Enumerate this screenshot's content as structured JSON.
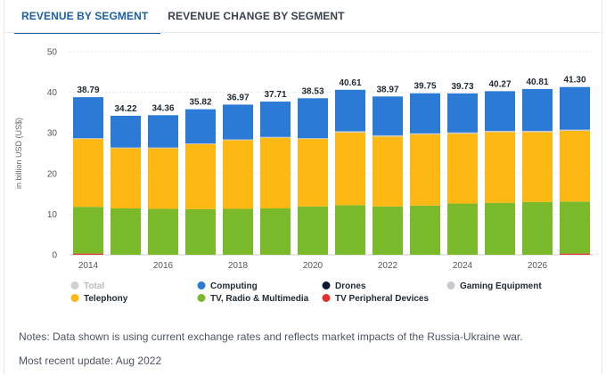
{
  "tabs": [
    {
      "label": "REVENUE BY SEGMENT",
      "active": true
    },
    {
      "label": "REVENUE CHANGE BY SEGMENT",
      "active": false
    }
  ],
  "chart_data": {
    "type": "bar",
    "stacked": true,
    "ylabel": "in billion USD (US$)",
    "ylim": [
      0,
      50
    ],
    "yticks": [
      0,
      10,
      20,
      30,
      40,
      50
    ],
    "x": [
      "2014",
      "2015",
      "2016",
      "2017",
      "2018",
      "2019",
      "2020",
      "2021",
      "2022",
      "2023",
      "2024",
      "2025",
      "2026",
      "2027"
    ],
    "xtick_labels": [
      "2014",
      "2016",
      "2018",
      "2020",
      "2022",
      "2024",
      "2026"
    ],
    "totals": [
      38.79,
      34.22,
      34.36,
      35.82,
      36.97,
      37.71,
      38.53,
      40.61,
      38.97,
      39.75,
      39.73,
      40.27,
      40.81,
      41.3
    ],
    "series": [
      {
        "name": "TV Peripheral Devices",
        "color": "#e0312b",
        "values": [
          0.3,
          0,
          0,
          0,
          0,
          0,
          0,
          0,
          0,
          0,
          0,
          0,
          0,
          0.3
        ]
      },
      {
        "name": "TV, Radio & Multimedia",
        "color": "#7ab929",
        "values": [
          11.5,
          11.4,
          11.3,
          11.2,
          11.3,
          11.4,
          11.9,
          12.2,
          11.9,
          12.1,
          12.6,
          12.8,
          13.0,
          12.8
        ]
      },
      {
        "name": "Telephony",
        "color": "#fdb813",
        "values": [
          16.7,
          14.8,
          14.9,
          16.0,
          16.9,
          17.4,
          16.6,
          17.9,
          17.2,
          17.5,
          17.2,
          17.4,
          17.2,
          17.4
        ]
      },
      {
        "name": "Gaming Equipment",
        "color": "#c9c9c9",
        "values": [
          0.2,
          0.2,
          0.2,
          0.2,
          0.2,
          0.2,
          0.2,
          0.3,
          0.3,
          0.3,
          0.3,
          0.3,
          0.3,
          0.3
        ]
      },
      {
        "name": "Drones",
        "color": "#0b1a33",
        "values": [
          0,
          0,
          0,
          0,
          0,
          0,
          0,
          0,
          0,
          0,
          0,
          0,
          0,
          0
        ]
      },
      {
        "name": "Computing",
        "color": "#2b7bd6",
        "values": [
          10.09,
          7.82,
          7.96,
          8.42,
          8.57,
          8.71,
          9.83,
          10.21,
          9.57,
          9.85,
          9.63,
          9.77,
          10.31,
          10.5
        ]
      }
    ],
    "legend": [
      {
        "name": "Total",
        "color": "#d0d0d0",
        "muted": true
      },
      {
        "name": "Computing",
        "color": "#2b7bd6"
      },
      {
        "name": "Drones",
        "color": "#0b1a33"
      },
      {
        "name": "Gaming Equipment",
        "color": "#c9c9c9"
      },
      {
        "name": "Telephony",
        "color": "#fdb813"
      },
      {
        "name": "TV, Radio & Multimedia",
        "color": "#7ab929"
      },
      {
        "name": "TV Peripheral Devices",
        "color": "#e0312b"
      }
    ]
  },
  "notes": "Notes: Data shown is using current exchange rates and reflects market impacts of the Russia-Ukraine war.",
  "update": "Most recent update: Aug 2022"
}
